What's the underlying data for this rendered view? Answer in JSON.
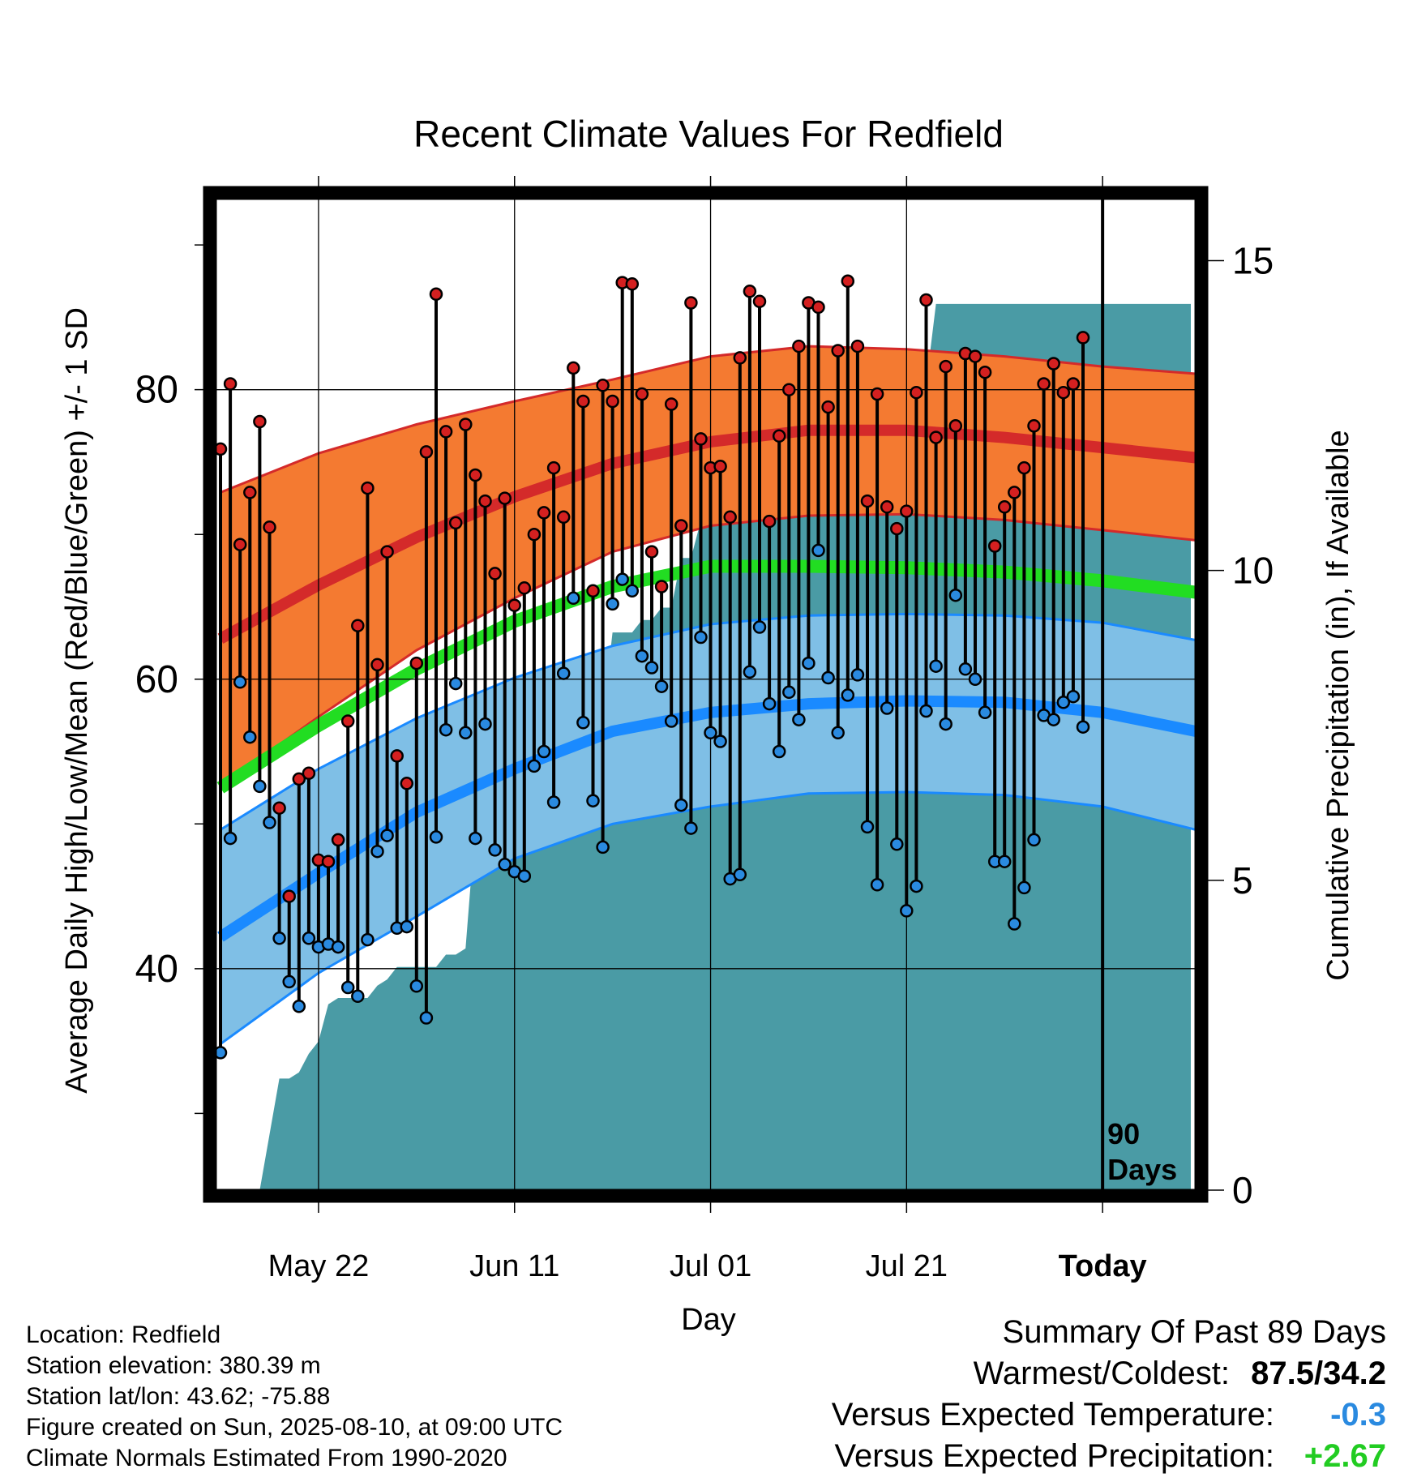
{
  "colors": {
    "normal_high_band": "#f47a31",
    "normal_high_line": "#d42a2a",
    "normal_mean_line": "#22dd22",
    "normal_low_band": "#7fbfe6",
    "normal_low_line": "#1a8aff",
    "precip_fill": "#4a9ba5",
    "high_marker": "#d42020",
    "low_marker": "#2a8ae0",
    "temp_anomaly": "#2a8ae0",
    "precip_anomaly": "#22cc22"
  },
  "chart_data": {
    "type": "line",
    "title": "Recent Climate Values For Redfield",
    "xlabel": "Day",
    "ylabel_left": "Average Daily High/Low/Mean (Red/Blue/Green) +/- 1 SD",
    "ylabel_right": "Cumulative Precipitation (in), If Available",
    "x_tick_labels": [
      "May 22",
      "Jun 11",
      "Jul 01",
      "Jul 21",
      "Today"
    ],
    "x_tick_days": [
      10,
      30,
      50,
      70,
      90
    ],
    "xlim_days": [
      -0.5,
      99.5
    ],
    "ylim_temp": [
      24.7,
      93.2
    ],
    "y_ticks_temp": [
      40,
      60,
      80
    ],
    "y_minor_ticks_temp": [
      30,
      50,
      70,
      90
    ],
    "ylim_precip": [
      0,
      16
    ],
    "y_ticks_precip": [
      0,
      5,
      10,
      15
    ],
    "today_marker_label": [
      "90",
      "Days"
    ],
    "grid": true,
    "normals": {
      "days": [
        0,
        10,
        20,
        30,
        40,
        50,
        60,
        70,
        80,
        90,
        99.5
      ],
      "high_plus_sd": [
        72.9,
        75.6,
        77.6,
        79.2,
        80.7,
        82.3,
        83.0,
        82.8,
        82.3,
        81.6,
        81.1
      ],
      "high_mean": [
        62.8,
        66.5,
        69.8,
        72.6,
        74.9,
        76.4,
        77.2,
        77.2,
        76.7,
        76.0,
        75.3
      ],
      "high_minus_sd": [
        52.6,
        57.4,
        62.0,
        65.6,
        68.8,
        70.6,
        71.3,
        71.4,
        71.0,
        70.3,
        69.6
      ],
      "mean": [
        52.5,
        56.8,
        60.7,
        64.0,
        66.4,
        67.8,
        67.8,
        67.7,
        67.4,
        66.8,
        66.0
      ],
      "low_plus_sd": [
        49.6,
        53.8,
        57.3,
        60.1,
        62.3,
        63.8,
        64.4,
        64.5,
        64.4,
        63.9,
        62.7
      ],
      "low_mean": [
        42.2,
        46.6,
        50.8,
        53.8,
        56.4,
        57.7,
        58.3,
        58.5,
        58.4,
        57.7,
        56.4
      ],
      "low_minus_sd": [
        34.8,
        39.7,
        43.6,
        47.6,
        50.0,
        51.2,
        52.1,
        52.2,
        52.0,
        51.2,
        49.6
      ]
    },
    "series": [
      {
        "name": "High",
        "values": [
          75.9,
          80.4,
          69.3,
          72.9,
          77.8,
          70.5,
          51.1,
          45.0,
          53.1,
          53.5,
          47.5,
          47.4,
          48.9,
          57.1,
          63.7,
          73.2,
          61.0,
          68.8,
          54.7,
          52.8,
          61.1,
          75.7,
          86.6,
          77.1,
          70.8,
          77.6,
          74.1,
          72.3,
          67.3,
          72.5,
          65.1,
          66.3,
          70.0,
          71.5,
          74.6,
          71.2,
          81.5,
          79.2,
          66.1,
          80.3,
          79.2,
          87.4,
          87.3,
          79.7,
          68.8,
          66.4,
          79.0,
          70.6,
          86.0,
          76.6,
          74.6,
          74.7,
          71.2,
          82.2,
          86.8,
          86.1,
          70.9,
          76.8,
          80.0,
          83.0,
          86.0,
          85.7,
          78.8,
          82.7,
          87.5,
          83.0,
          72.3,
          79.7,
          71.9,
          70.4,
          71.6,
          79.8,
          86.2,
          76.7,
          81.6,
          77.5,
          82.5,
          82.3,
          81.2,
          69.2,
          71.9,
          72.9,
          74.6,
          77.5,
          80.4,
          81.8,
          79.8,
          80.4,
          83.6
        ],
        "marker_color": "#d42020"
      },
      {
        "name": "Low",
        "values": [
          34.2,
          49.0,
          59.8,
          56.0,
          52.6,
          50.1,
          42.1,
          39.1,
          37.4,
          42.1,
          41.5,
          41.7,
          41.5,
          38.7,
          38.1,
          42.0,
          48.1,
          49.2,
          42.8,
          42.9,
          38.8,
          36.6,
          49.1,
          56.5,
          59.7,
          56.3,
          49.0,
          56.9,
          48.2,
          47.2,
          46.7,
          46.4,
          54.0,
          55.0,
          51.5,
          60.4,
          65.6,
          57.0,
          51.6,
          48.4,
          65.2,
          66.9,
          66.1,
          61.6,
          60.8,
          59.5,
          57.1,
          51.3,
          49.7,
          62.9,
          56.3,
          55.7,
          46.2,
          46.5,
          60.5,
          63.6,
          58.3,
          55.0,
          59.1,
          57.2,
          61.1,
          68.9,
          60.1,
          56.3,
          58.9,
          60.3,
          49.8,
          45.8,
          58.0,
          48.6,
          44.0,
          45.7,
          57.8,
          60.9,
          56.9,
          65.8,
          60.7,
          60.0,
          57.7,
          47.4,
          47.4,
          43.1,
          45.6,
          48.9,
          57.5,
          57.2,
          58.4,
          58.8,
          56.7
        ],
        "marker_color": "#2a8ae0"
      },
      {
        "name": "Cumulative Precipitation",
        "x": [
          4,
          5,
          6,
          7,
          8,
          9,
          10,
          11,
          12,
          13,
          14,
          15,
          16,
          17,
          18,
          19,
          20,
          21,
          22,
          23,
          24,
          25,
          26,
          27,
          28,
          29,
          30,
          31,
          32,
          33,
          34,
          35,
          36,
          37,
          38,
          39,
          40,
          41,
          42,
          43,
          44,
          45,
          46,
          47,
          48,
          49,
          50,
          51,
          52,
          53,
          54,
          55,
          56,
          57,
          58,
          59,
          60,
          61,
          62,
          63,
          64,
          65,
          66,
          67,
          68,
          69,
          70,
          71,
          72,
          73,
          74,
          75,
          76,
          77,
          78,
          79,
          80,
          81,
          82,
          83,
          84,
          85,
          86,
          87,
          88,
          89,
          90,
          91,
          92,
          93,
          94,
          95,
          96,
          97,
          98,
          99
        ],
        "values": [
          0.0,
          0.9,
          1.8,
          1.8,
          1.9,
          2.2,
          2.4,
          3.0,
          3.1,
          3.1,
          3.1,
          3.1,
          3.3,
          3.4,
          3.6,
          3.6,
          3.6,
          3.6,
          3.6,
          3.8,
          3.8,
          3.9,
          5.9,
          6.9,
          6.9,
          6.9,
          6.9,
          6.9,
          6.9,
          6.9,
          6.9,
          6.9,
          6.9,
          7.2,
          7.6,
          7.6,
          9.0,
          9.0,
          9.0,
          9.2,
          9.2,
          9.4,
          9.4,
          10.2,
          10.2,
          10.8,
          11.2,
          11.3,
          11.3,
          11.3,
          11.3,
          11.3,
          11.3,
          11.3,
          11.4,
          11.7,
          12.6,
          12.6,
          12.8,
          12.9,
          12.9,
          13.0,
          13.0,
          13.0,
          13.0,
          13.0,
          13.0,
          13.0,
          13.0,
          14.3,
          14.3,
          14.3,
          14.3,
          14.3,
          14.3,
          14.3,
          14.3,
          14.3,
          14.3,
          14.3,
          14.3,
          14.3,
          14.3,
          14.3,
          14.3,
          14.3,
          14.3,
          14.3,
          14.3,
          14.3,
          14.3,
          14.3,
          14.3,
          14.3,
          14.3,
          14.3
        ],
        "axis": "right"
      }
    ]
  },
  "info": {
    "location": "Location: Redfield",
    "elevation": "Station elevation: 380.39 m",
    "latlon": "Station lat/lon: 43.62; -75.88",
    "created": "Figure created on Sun, 2025-08-10, at 09:00 UTC",
    "normals": "Climate Normals Estimated From 1990-2020"
  },
  "summary": {
    "title": "Summary Of Past 89 Days",
    "warmest_coldest_label": "Warmest/Coldest:",
    "warmest_coldest_value": "87.5/34.2",
    "temp_label": "Versus Expected Temperature:",
    "temp_value": "-0.3",
    "precip_label": "Versus Expected Precipitation:",
    "precip_value": "+2.67"
  }
}
